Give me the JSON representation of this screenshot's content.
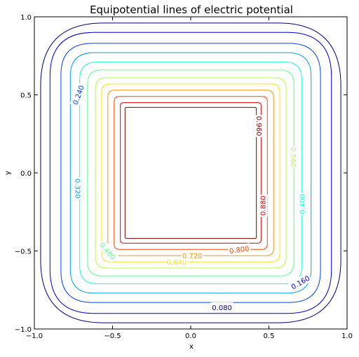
{
  "chart_data": {
    "type": "contour",
    "title": "Equipotential lines of electric potential",
    "xlabel": "x",
    "ylabel": "y",
    "xlim": [
      -1.0,
      1.0
    ],
    "ylim": [
      -1.0,
      1.0
    ],
    "x_ticks": [
      -1.0,
      -0.5,
      0.0,
      0.5,
      1.0
    ],
    "y_ticks": [
      -1.0,
      -0.5,
      0.0,
      0.5,
      1.0
    ],
    "x_tick_labels": [
      "−1.0",
      "−0.5",
      "0.0",
      "0.5",
      "1.0"
    ],
    "y_tick_labels": [
      "−1.0",
      "−0.5",
      "0.0",
      "0.5",
      "1.0"
    ],
    "grid": false,
    "levels": [
      {
        "level": 0.08,
        "half_width": 0.96,
        "corner": 0.4,
        "color": "#00007f"
      },
      {
        "level": 0.16,
        "half_width": 0.9,
        "corner": 0.28,
        "color": "#0000d8"
      },
      {
        "level": 0.24,
        "half_width": 0.83,
        "corner": 0.2,
        "color": "#0040ff"
      },
      {
        "level": 0.32,
        "half_width": 0.77,
        "corner": 0.15,
        "color": "#00a0ff"
      },
      {
        "level": 0.4,
        "half_width": 0.71,
        "corner": 0.11,
        "color": "#16ffe0"
      },
      {
        "level": 0.48,
        "half_width": 0.66,
        "corner": 0.09,
        "color": "#60ff96"
      },
      {
        "level": 0.56,
        "half_width": 0.61,
        "corner": 0.07,
        "color": "#b0ff47"
      },
      {
        "level": 0.64,
        "half_width": 0.57,
        "corner": 0.055,
        "color": "#ffe500"
      },
      {
        "level": 0.72,
        "half_width": 0.53,
        "corner": 0.045,
        "color": "#ff9400"
      },
      {
        "level": 0.8,
        "half_width": 0.49,
        "corner": 0.035,
        "color": "#ff4600"
      },
      {
        "level": 0.88,
        "half_width": 0.45,
        "corner": 0.02,
        "color": "#d80000"
      },
      {
        "level": 0.96,
        "half_width": 0.42,
        "corner": 0.01,
        "color": "#7f0000"
      }
    ],
    "contour_labels": [
      {
        "text": "0.080",
        "x": 0.2,
        "y": -0.86,
        "rotation": 0,
        "color": "#00007f"
      },
      {
        "text": "0.160",
        "x": 0.7,
        "y": -0.7,
        "rotation": -30,
        "color": "#0000d8"
      },
      {
        "text": "0.240",
        "x": -0.72,
        "y": 0.5,
        "rotation": -70,
        "color": "#0040ff"
      },
      {
        "text": "0.320",
        "x": -0.72,
        "y": -0.1,
        "rotation": 90,
        "color": "#00a0ff"
      },
      {
        "text": "0.400",
        "x": 0.71,
        "y": -0.2,
        "rotation": -90,
        "color": "#16ffe0"
      },
      {
        "text": "0.480",
        "x": -0.53,
        "y": -0.5,
        "rotation": 50,
        "color": "#60ff96"
      },
      {
        "text": "0.560",
        "x": 0.66,
        "y": 0.1,
        "rotation": 90,
        "color": "#b0ff47"
      },
      {
        "text": "0.640",
        "x": -0.09,
        "y": -0.57,
        "rotation": 0,
        "color": "#ffe500"
      },
      {
        "text": "0.720",
        "x": 0.01,
        "y": -0.53,
        "rotation": 0,
        "color": "#ff9400"
      },
      {
        "text": "0.800",
        "x": 0.31,
        "y": -0.49,
        "rotation": -8,
        "color": "#ff4600"
      },
      {
        "text": "0.880",
        "x": 0.46,
        "y": -0.21,
        "rotation": -90,
        "color": "#d80000"
      },
      {
        "text": "0.960",
        "x": 0.44,
        "y": 0.3,
        "rotation": 90,
        "color": "#7f0000"
      }
    ]
  }
}
